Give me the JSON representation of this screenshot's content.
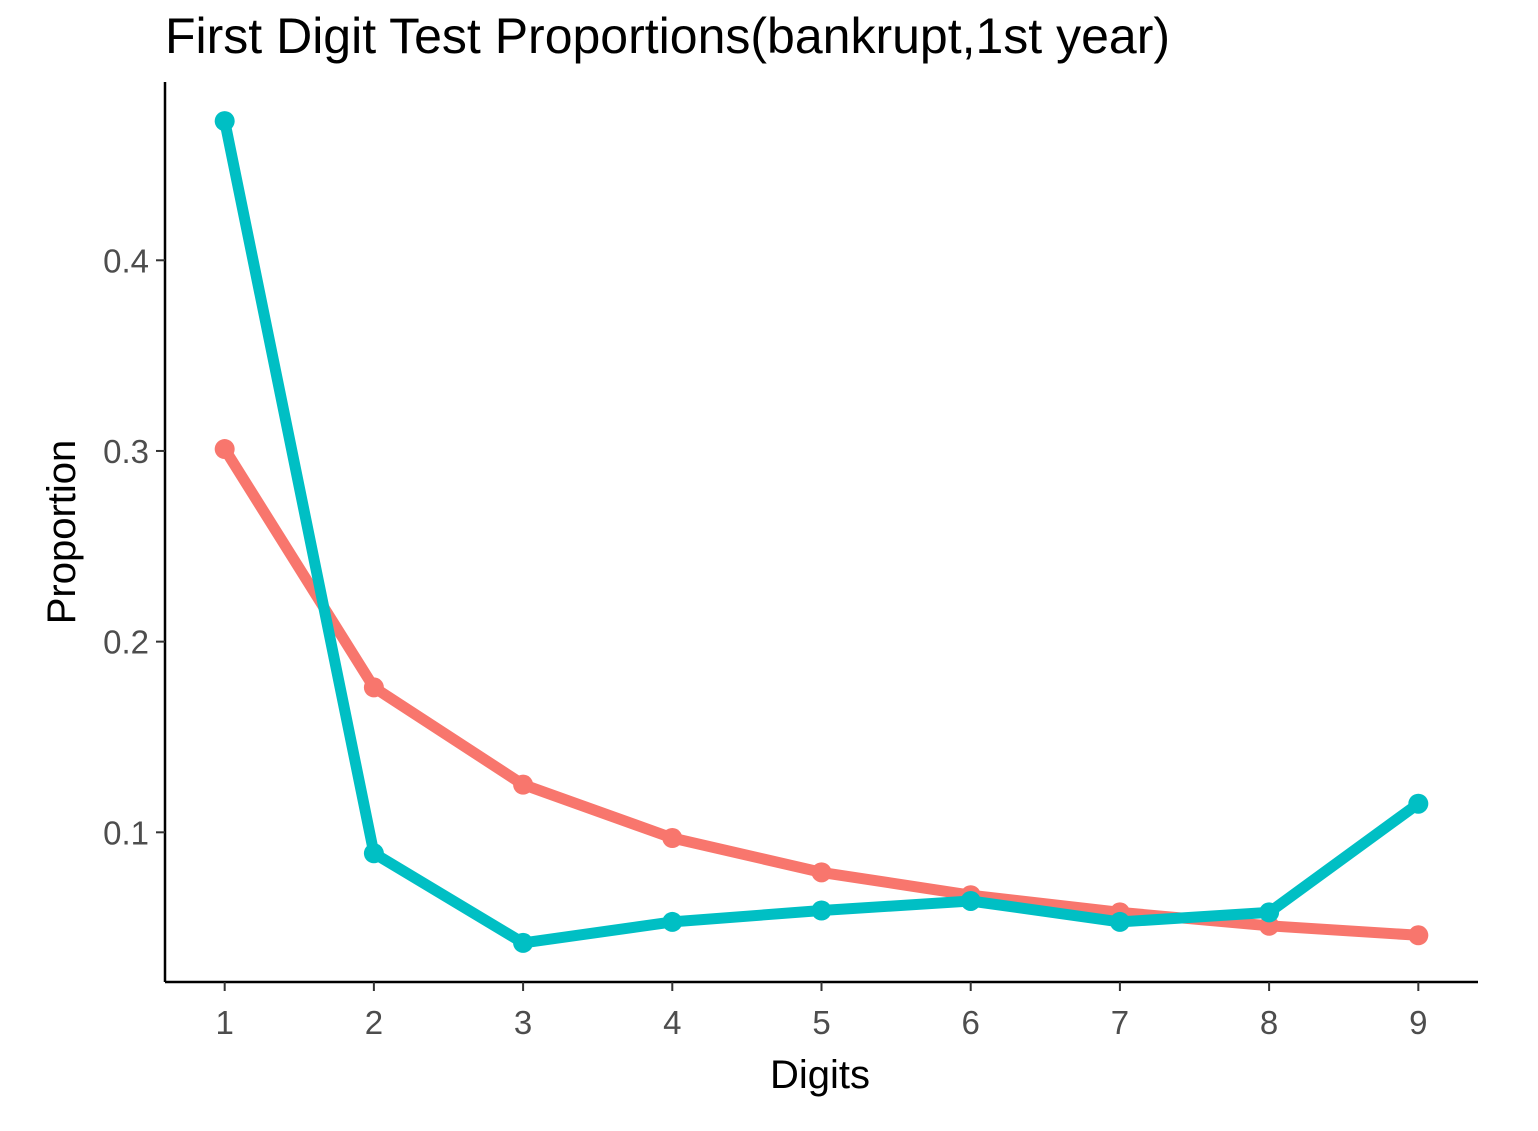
{
  "chart_data": {
    "type": "line",
    "title": "First Digit Test Proportions(bankrupt,1st year)",
    "xlabel": "Digits",
    "ylabel": "Proportion",
    "x": [
      1,
      2,
      3,
      4,
      5,
      6,
      7,
      8,
      9
    ],
    "x_ticks": [
      "1",
      "2",
      "3",
      "4",
      "5",
      "6",
      "7",
      "8",
      "9"
    ],
    "y_ticks": [
      0.1,
      0.2,
      0.3,
      0.4
    ],
    "y_tick_labels": [
      "0.1",
      "0.2",
      "0.3",
      "0.4"
    ],
    "xlim": [
      0.6,
      9.4
    ],
    "ylim": [
      0.0215,
      0.4935
    ],
    "grid": false,
    "legend": "none",
    "series": [
      {
        "color": "#F8766D",
        "values": [
          0.301,
          0.176,
          0.125,
          0.097,
          0.079,
          0.067,
          0.058,
          0.051,
          0.046
        ]
      },
      {
        "color": "#00BFC4",
        "values": [
          0.473,
          0.089,
          0.042,
          0.053,
          0.059,
          0.064,
          0.053,
          0.058,
          0.115
        ]
      }
    ]
  }
}
